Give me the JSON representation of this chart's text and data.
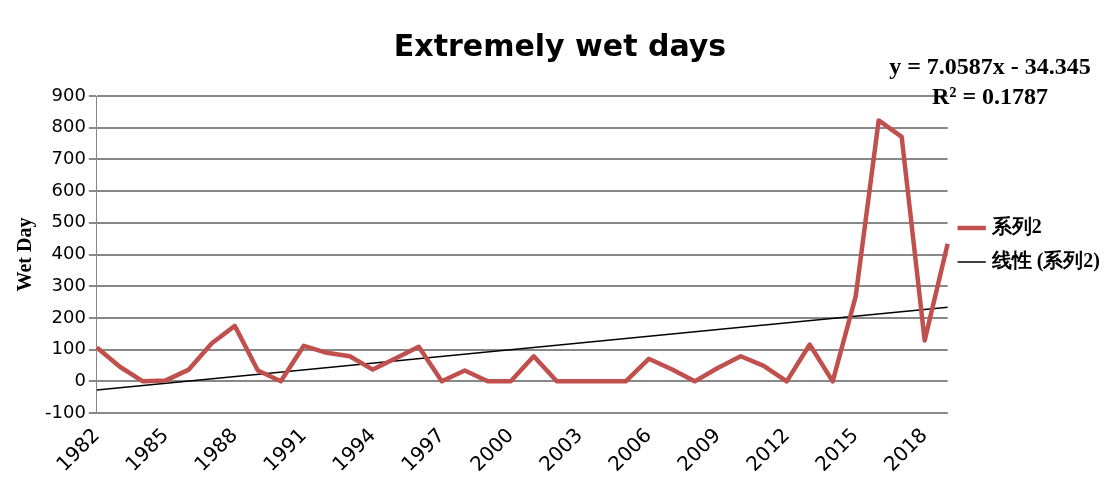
{
  "chart_data": {
    "type": "line",
    "title": "Extremely wet days",
    "ylabel": "Wet Day",
    "categories": [
      "1982",
      null,
      null,
      "1985",
      null,
      null,
      "1988",
      null,
      null,
      "1991",
      null,
      null,
      "1994",
      null,
      null,
      "1997",
      null,
      null,
      "2000",
      null,
      null,
      "2003",
      null,
      null,
      "2006",
      null,
      null,
      "2009",
      null,
      null,
      "2012",
      null,
      null,
      "2015",
      null,
      null,
      "2018",
      null
    ],
    "series": [
      {
        "name": "系列2",
        "color": "#c0504d",
        "values": [
          107,
          46,
          0,
          3,
          37,
          120,
          175,
          34,
          0,
          112,
          90,
          79,
          37,
          73,
          109,
          0,
          34,
          0,
          0,
          79,
          0,
          0,
          0,
          0,
          71,
          38,
          0,
          42,
          79,
          49,
          0,
          116,
          0,
          268,
          823,
          771,
          129,
          434
        ]
      },
      {
        "name": "线性 (系列2)",
        "color": "#000000",
        "values": [
          -27.3,
          null,
          null,
          null,
          null,
          null,
          null,
          null,
          null,
          null,
          null,
          null,
          null,
          null,
          null,
          null,
          null,
          null,
          null,
          null,
          null,
          null,
          null,
          null,
          null,
          null,
          null,
          null,
          null,
          null,
          null,
          null,
          null,
          null,
          null,
          null,
          null,
          233.9
        ]
      }
    ],
    "ylim": [
      -100,
      900
    ],
    "yticks": [
      -100,
      0,
      100,
      200,
      300,
      400,
      500,
      600,
      700,
      800,
      900
    ],
    "grid": "y",
    "legend": "right",
    "marker": "none",
    "line_style": "solid",
    "annotations": [
      "y = 7.0587x - 34.345",
      "R² = 0.1787"
    ]
  }
}
